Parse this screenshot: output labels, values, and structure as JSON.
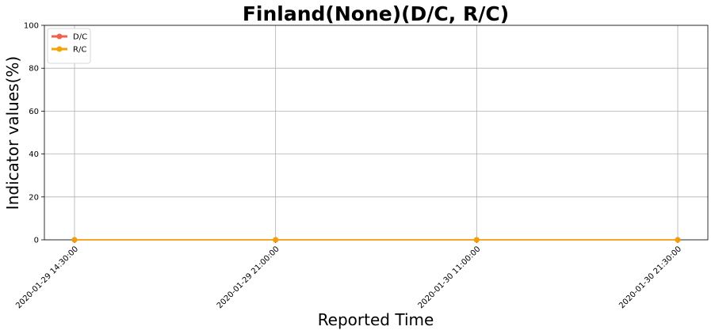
{
  "chart_data": {
    "type": "line",
    "title": "Finland(None)(D/C, R/C)",
    "xlabel": "Reported Time",
    "ylabel": "Indicator values(%)",
    "x": [
      "2020-01-29 14:30:00",
      "2020-01-29 21:00:00",
      "2020-01-30 11:00:00",
      "2020-01-30 21:30:00"
    ],
    "ylim": [
      0,
      100
    ],
    "yticks": [
      0,
      20,
      40,
      60,
      80,
      100
    ],
    "grid": true,
    "legend_position": "top-left",
    "series": [
      {
        "name": "D/C",
        "values": [
          0,
          0,
          0,
          0
        ],
        "color": "#f0604d"
      },
      {
        "name": "R/C",
        "values": [
          0,
          0,
          0,
          0
        ],
        "color": "#f5a300"
      }
    ]
  }
}
